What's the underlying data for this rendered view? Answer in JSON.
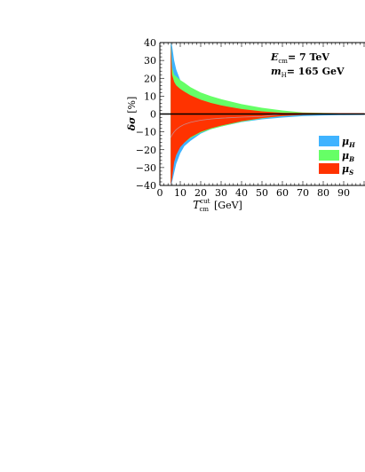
{
  "chart_data": {
    "type": "area",
    "xlabel_prefix": "T",
    "xlabel_sup": "cut",
    "xlabel_sub": "cm",
    "xlabel_unit": "[GeV]",
    "ylabel_main": "δσ",
    "ylabel_unit": "[%]",
    "xlim": [
      0,
      100
    ],
    "ylim": [
      -40,
      40
    ],
    "xticks": [
      0,
      10,
      20,
      30,
      40,
      50,
      60,
      70,
      80,
      90
    ],
    "xtick_labels": [
      "0",
      "10",
      "20",
      "30",
      "40",
      "50",
      "60",
      "70",
      "80",
      "90"
    ],
    "yticks": [
      40,
      30,
      20,
      10,
      0,
      -10,
      -20,
      -30,
      -40
    ],
    "ytick_labels": [
      "40",
      "30",
      "20",
      "10",
      "0",
      "−10",
      "−20",
      "−30",
      "−40"
    ],
    "annotations": {
      "line1_sym": "E",
      "line1_sub": "cm",
      "line1_val": "= 7 TeV",
      "line2_sym": "m",
      "line2_sub": "H",
      "line2_val": "= 165 GeV"
    },
    "legend": {
      "placement": "center-right",
      "items": [
        {
          "sym": "μ",
          "sub": "H",
          "color": "#3fb3ff"
        },
        {
          "sym": "μ",
          "sub": "B",
          "color": "#66ff66"
        },
        {
          "sym": "μ",
          "sub": "S",
          "color": "#ff3300"
        }
      ]
    },
    "x": [
      5.3,
      6,
      7,
      8,
      10,
      12,
      15,
      20,
      25,
      30,
      40,
      50,
      60,
      70,
      80,
      90,
      100
    ],
    "series": [
      {
        "key": "mu_H",
        "color": "#3fb3ff",
        "upper": [
          40,
          38,
          30,
          25,
          19,
          15,
          12,
          8.5,
          6.5,
          5,
          3,
          2,
          1,
          0.7,
          0.5,
          0.4,
          0.3
        ],
        "lower": [
          -40,
          -38,
          -33,
          -28,
          -22,
          -18,
          -15,
          -11,
          -8.5,
          -7,
          -4.5,
          -3,
          -2,
          -1.2,
          -0.8,
          -0.6,
          -0.5
        ]
      },
      {
        "key": "mu_B",
        "color": "#66ff66",
        "upper": [
          40,
          26,
          22,
          21,
          19,
          17.5,
          15,
          12,
          10,
          8.3,
          5.5,
          3.5,
          2,
          0.9,
          0.6,
          0.5,
          0.4
        ],
        "lower": [
          -40,
          -30,
          -24,
          -21,
          -18,
          -16,
          -13.5,
          -10.5,
          -8.5,
          -7,
          -4.3,
          -2.5,
          -1.2,
          -0.5,
          -0.2,
          -0.1,
          -0.1
        ]
      },
      {
        "key": "mu_S",
        "color": "#ff3300",
        "upper": [
          40,
          22,
          18,
          16,
          14,
          12.5,
          10.5,
          8,
          6.2,
          4.8,
          2.8,
          1.5,
          0.7,
          0.6,
          0.5,
          0.5,
          0.5
        ],
        "lower": [
          -40,
          -36,
          -27,
          -23,
          -18.5,
          -16,
          -13,
          -10,
          -8,
          -6.5,
          -4,
          -2.3,
          -1.1,
          -0.5,
          -0.2,
          -0.1,
          -0.1
        ]
      }
    ]
  }
}
